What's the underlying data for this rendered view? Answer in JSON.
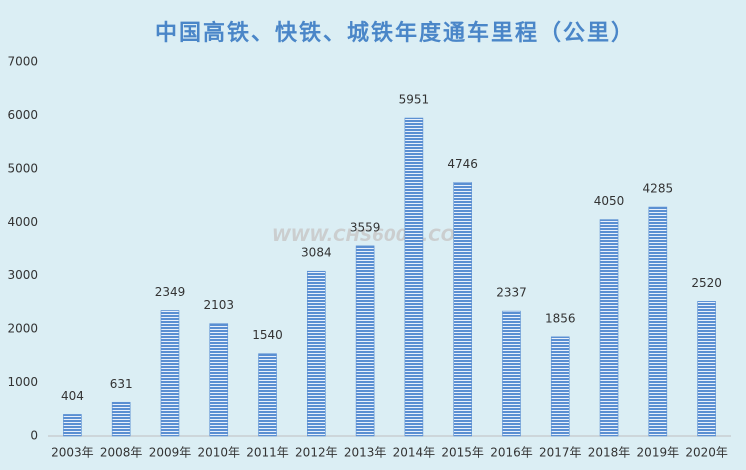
{
  "chart_data": {
    "type": "bar",
    "title": "中国高铁、快铁、城铁年度通车里程（公里）",
    "watermark": "WWW.CHS600H.COM",
    "categories": [
      "2003年",
      "2008年",
      "2009年",
      "2010年",
      "2011年",
      "2012年",
      "2013年",
      "2014年",
      "2015年",
      "2016年",
      "2017年",
      "2018年",
      "2019年",
      "2020年"
    ],
    "values": [
      404,
      631,
      2349,
      2103,
      1540,
      3084,
      3559,
      5951,
      4746,
      2337,
      1856,
      4050,
      4285,
      2520
    ],
    "color": "#5a8fd2",
    "ylim": [
      0,
      7000
    ],
    "yticks": [
      0,
      1000,
      2000,
      3000,
      4000,
      5000,
      6000,
      7000
    ],
    "grid": false
  }
}
